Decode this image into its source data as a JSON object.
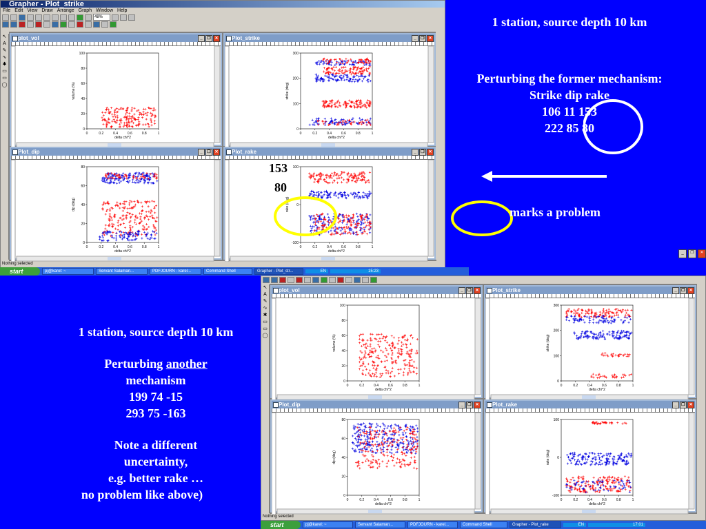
{
  "top_app": {
    "title": "Grapher - Plot_strike",
    "menu": [
      "File",
      "Edit",
      "View",
      "Draw",
      "Arrange",
      "Graph",
      "Window",
      "Help"
    ],
    "zoom": "48%",
    "status": "Nothing selected",
    "tools": [
      "↖",
      "A",
      "✎",
      "∿",
      "✱",
      "▭",
      "▭",
      "◯"
    ]
  },
  "top_plots": [
    {
      "title": "plot_vol",
      "ylabel": "volume (%)",
      "xlabel": "delta chi^2",
      "yticks": [
        "0",
        "20",
        "40",
        "60",
        "80",
        "100"
      ],
      "xticks": [
        "0",
        "0.2",
        "0.4",
        "0.6",
        "0.8",
        "1"
      ]
    },
    {
      "title": "Plot_strike",
      "ylabel": "strike (deg)",
      "xlabel": "delta chi^2",
      "yticks": [
        "0",
        "100",
        "200",
        "300"
      ],
      "xticks": [
        "0",
        "0.2",
        "0.4",
        "0.6",
        "0.8",
        "1"
      ]
    },
    {
      "title": "Plot_dip",
      "ylabel": "dip (deg)",
      "xlabel": "delta chi^2",
      "yticks": [
        "0",
        "20",
        "40",
        "60",
        "80"
      ],
      "xticks": [
        "0",
        "0.2",
        "0.4",
        "0.6",
        "0.8",
        "1"
      ]
    },
    {
      "title": "Plot_rake",
      "ylabel": "rake (deg)",
      "xlabel": "delta chi^2",
      "yticks": [
        "-100",
        "0",
        "100"
      ],
      "xticks": [
        "0",
        "0.2",
        "0.4",
        "0.6",
        "0.8",
        "1"
      ]
    }
  ],
  "top_taskbar": {
    "start": "start",
    "tasks": [
      "pj@karel: ~",
      "Servant Salaman...",
      "PDFJOURN - karel...",
      "Command Shell",
      "Grapher - Plot_str..."
    ],
    "lang": "EN",
    "clock": "15:23"
  },
  "bottom_app": {
    "status": "Nothing selected",
    "tools": [
      "↖",
      "A",
      "✎",
      "∿",
      "✱",
      "▭",
      "▭",
      "◯"
    ]
  },
  "bottom_plots": [
    {
      "title": "plot_vol",
      "ylabel": "volume (%)",
      "xlabel": "delta chi^2",
      "yticks": [
        "0",
        "20",
        "40",
        "60",
        "80",
        "100"
      ],
      "xticks": [
        "0",
        "0.2",
        "0.4",
        "0.6",
        "0.8",
        "1"
      ]
    },
    {
      "title": "Plot_strike",
      "ylabel": "strike (deg)",
      "xlabel": "delta chi^2",
      "yticks": [
        "0",
        "100",
        "200",
        "300"
      ],
      "xticks": [
        "0",
        "0.2",
        "0.4",
        "0.6",
        "0.8",
        "1"
      ]
    },
    {
      "title": "Plot_dip",
      "ylabel": "dip (deg)",
      "xlabel": "delta chi^2",
      "yticks": [
        "0",
        "20",
        "40",
        "60",
        "80"
      ],
      "xticks": [
        "0",
        "0.2",
        "0.4",
        "0.6",
        "0.8",
        "1"
      ]
    },
    {
      "title": "Plot_rake",
      "ylabel": "rake (deg)",
      "xlabel": "delta chi^2",
      "yticks": [
        "-100",
        "0",
        "100"
      ],
      "xticks": [
        "0",
        "0.2",
        "0.4",
        "0.6",
        "0.8",
        "1"
      ]
    }
  ],
  "bottom_taskbar": {
    "start": "start",
    "tasks": [
      "pj@karel: ~",
      "Servant Salaman...",
      "PDFJOURN - karel...",
      "Command Shell",
      "Grapher - Plot_rake"
    ],
    "lang": "EN",
    "clock": "17:01"
  },
  "slide_top": {
    "line1": "1 station, source depth 10  km",
    "line2": "Perturbing the former mechanism:",
    "line3": "Strike dip rake",
    "line4": "106   11  153",
    "line5": "222  85  80",
    "problem": "marks a problem"
  },
  "annotation": {
    "v1": "153",
    "v2": "80"
  },
  "slide_bottom": {
    "line1": "1 station, source depth 10  km",
    "line2a": "Perturbing ",
    "line2b": "another",
    "line3": "mechanism",
    "line4": "199   74  -15",
    "line5": "293   75  -163",
    "line6": "Note a different",
    "line7": "uncertainty,",
    "line8": "e.g. better rake …",
    "line9": "no problem like above)"
  },
  "colors": {
    "slide_bg": "#0000ff",
    "red_series": "#ff0000",
    "blue_series": "#0000e0",
    "ellipse_yellow": "#ffff00"
  }
}
